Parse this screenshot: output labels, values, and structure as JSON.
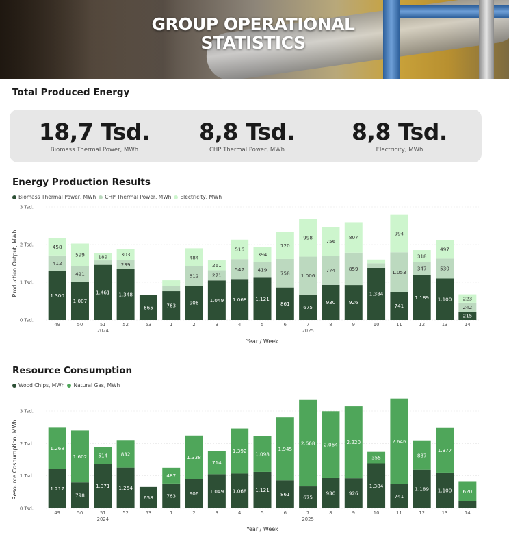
{
  "banner": {
    "title_line1": "GROUP OPERATIONAL",
    "title_line2": "STATISTICS"
  },
  "kpi_section": {
    "title": "Total Produced Energy",
    "cards": [
      {
        "value": "18,7 Tsd.",
        "label": "Biomass Thermal Power, MWh"
      },
      {
        "value": "8,8 Tsd.",
        "label": "CHP Thermal Power, MWh"
      },
      {
        "value": "8,8 Tsd.",
        "label": "Electricity, MWh"
      }
    ]
  },
  "colors": {
    "dark_green": "#2d4f35",
    "mid_green": "#4fa65a",
    "light_green1": "#bcd9bf",
    "light_green2": "#cdf5cd"
  },
  "chart_data": [
    {
      "type": "bar",
      "stacked": true,
      "title": "Energy Production Results",
      "xlabel": "Year / Week",
      "ylabel": "Production Output, MWh",
      "ylim": [
        0,
        3000
      ],
      "yticks": [
        "0 Tsd.",
        "1 Tsd.",
        "2 Tsd.",
        "3 Tsd."
      ],
      "categories": [
        "49",
        "50",
        "51",
        "52",
        "53",
        "1",
        "2",
        "3",
        "4",
        "5",
        "6",
        "7",
        "8",
        "9",
        "10",
        "11",
        "12",
        "13",
        "14"
      ],
      "year_labels": [
        {
          "label": "2024",
          "at": "51"
        },
        {
          "label": "2025",
          "at": "7"
        }
      ],
      "series": [
        {
          "name": "Biomass Thermal Power, MWh",
          "color": "#2d4f35",
          "values": [
            1300,
            1007,
            1461,
            1348,
            665,
            763,
            906,
            1049,
            1068,
            1121,
            861,
            675,
            930,
            926,
            1384,
            741,
            1189,
            1100,
            215
          ],
          "labels": [
            "1.300",
            "1.007",
            "1.461",
            "1.348",
            "665",
            "763",
            "906",
            "1.049",
            "1.068",
            "1.121",
            "861",
            "675",
            "930",
            "926",
            "1.384",
            "741",
            "1.189",
            "1.100",
            "215"
          ]
        },
        {
          "name": "CHP Thermal Power, MWh",
          "color": "#bcd9bf",
          "values": [
            412,
            421,
            120,
            239,
            0,
            140,
            512,
            271,
            547,
            419,
            758,
            1006,
            774,
            859,
            120,
            1053,
            347,
            530,
            242
          ],
          "labels": [
            "412",
            "421",
            "",
            "239",
            "",
            "",
            "512",
            "271",
            "547",
            "419",
            "758",
            "1.006",
            "774",
            "859",
            "",
            "1.053",
            "347",
            "530",
            "242"
          ]
        },
        {
          "name": "Electricity, MWh",
          "color": "#cdf5cd",
          "values": [
            458,
            599,
            189,
            303,
            0,
            150,
            484,
            261,
            516,
            394,
            720,
            998,
            756,
            807,
            100,
            994,
            318,
            497,
            223
          ],
          "labels": [
            "458",
            "599",
            "189",
            "303",
            "",
            "",
            "484",
            "261",
            "516",
            "394",
            "720",
            "998",
            "756",
            "807",
            "",
            "994",
            "318",
            "497",
            "223"
          ]
        }
      ]
    },
    {
      "type": "bar",
      "stacked": true,
      "title": "Resource Consumption",
      "xlabel": "Year / Week",
      "ylabel": "Resource Cosnumption, MWh",
      "ylim": [
        0,
        3000
      ],
      "yticks": [
        "0 Tsd.",
        "1 Tsd.",
        "2 Tsd.",
        "3 Tsd."
      ],
      "categories": [
        "49",
        "50",
        "51",
        "52",
        "53",
        "1",
        "2",
        "3",
        "4",
        "5",
        "6",
        "7",
        "8",
        "9",
        "10",
        "11",
        "12",
        "13",
        "14"
      ],
      "year_labels": [
        {
          "label": "2024",
          "at": "51"
        },
        {
          "label": "2025",
          "at": "7"
        }
      ],
      "series": [
        {
          "name": "Wood Chips, MWh",
          "color": "#2d4f35",
          "values": [
            1217,
            798,
            1371,
            1254,
            658,
            763,
            906,
            1049,
            1068,
            1121,
            861,
            675,
            930,
            926,
            1384,
            741,
            1189,
            1100,
            215
          ],
          "labels": [
            "1.217",
            "798",
            "1.371",
            "1.254",
            "658",
            "763",
            "906",
            "1.049",
            "1.068",
            "1.121",
            "861",
            "675",
            "930",
            "926",
            "1.384",
            "741",
            "1.189",
            "1.100",
            ""
          ]
        },
        {
          "name": "Natural Gas, MWh",
          "color": "#4fa65a",
          "values": [
            1268,
            1602,
            514,
            832,
            0,
            487,
            1338,
            714,
            1392,
            1098,
            1945,
            2668,
            2064,
            2220,
            355,
            2646,
            887,
            1377,
            620
          ],
          "labels": [
            "1.268",
            "1.602",
            "514",
            "832",
            "",
            "487",
            "1.338",
            "714",
            "1.392",
            "1.098",
            "1.945",
            "2.668",
            "2.064",
            "2.220",
            "355",
            "2.646",
            "887",
            "1.377",
            "620"
          ]
        }
      ]
    }
  ]
}
